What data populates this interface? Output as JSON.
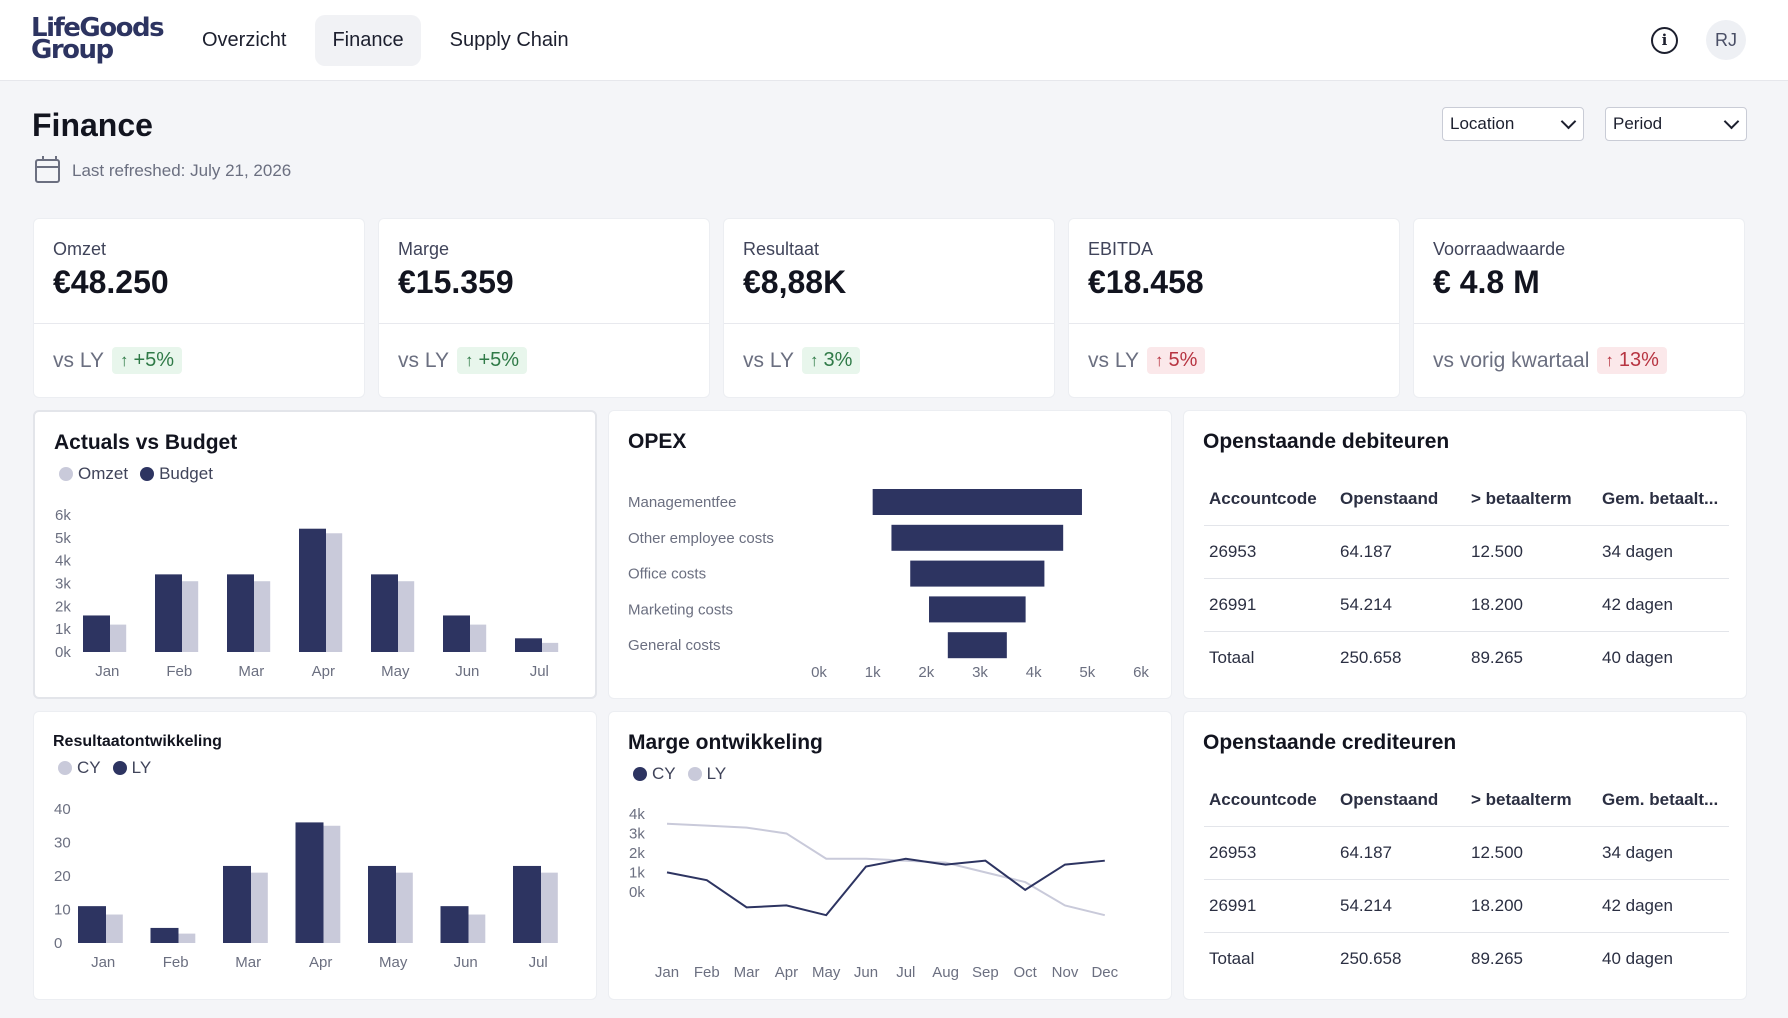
{
  "header": {
    "logo_line1": "LifeGoods",
    "logo_line2": "Group",
    "nav": [
      "Overzicht",
      "Finance",
      "Supply Chain"
    ],
    "active_nav": "Finance",
    "avatar_initials": "RJ"
  },
  "page": {
    "title": "Finance",
    "last_refreshed": "Last refreshed: July 21, 2026",
    "location_select": "Location",
    "period_select": "Period"
  },
  "kpis": [
    {
      "label": "Omzet",
      "value": "€48.250",
      "compare": "vs LY",
      "delta": "+5%",
      "trend": "up",
      "tone": "positive"
    },
    {
      "label": "Marge",
      "value": "€15.359",
      "compare": "vs LY",
      "delta": "+5%",
      "trend": "up",
      "tone": "positive"
    },
    {
      "label": "Resultaat",
      "value": "€8,88K",
      "compare": "vs LY",
      "delta": "3%",
      "trend": "up",
      "tone": "positive"
    },
    {
      "label": "EBITDA",
      "value": "€18.458",
      "compare": "vs LY",
      "delta": "5%",
      "trend": "up",
      "tone": "negative"
    },
    {
      "label": "Voorraadwaarde",
      "value": "€ 4.8 M",
      "compare": "vs vorig kwartaal",
      "delta": "13%",
      "trend": "up",
      "tone": "negative"
    }
  ],
  "colors": {
    "dark": "#2d3461",
    "light": "#c9cada",
    "green_bg": "#e8f6ec",
    "red_bg": "#fbe8ea"
  },
  "charts": {
    "actuals": {
      "title": "Actuals vs Budget",
      "legend": [
        "Omzet",
        "Budget"
      ]
    },
    "opex": {
      "title": "OPEX"
    },
    "resultaat": {
      "title": "Resultaatontwikkeling",
      "legend": [
        "CY",
        "LY"
      ]
    },
    "marge": {
      "title": "Marge ontwikkeling",
      "legend": [
        "CY",
        "LY"
      ]
    }
  },
  "chart_data": [
    {
      "type": "bar",
      "title": "Actuals vs Budget",
      "categories": [
        "Jan",
        "Feb",
        "Mar",
        "Apr",
        "May",
        "Jun",
        "Jul"
      ],
      "series": [
        {
          "name": "Budget",
          "values": [
            1.6,
            3.4,
            3.4,
            5.4,
            3.4,
            1.6,
            0.6
          ]
        },
        {
          "name": "Omzet",
          "values": [
            1.2,
            3.1,
            3.1,
            5.2,
            3.1,
            1.2,
            0.4
          ]
        }
      ],
      "yticks": [
        "0k",
        "1k",
        "2k",
        "3k",
        "4k",
        "5k",
        "6k"
      ],
      "ylim": [
        0,
        6
      ]
    },
    {
      "type": "bar",
      "orientation": "horizontal",
      "title": "OPEX",
      "categories": [
        "Managementfee",
        "Other employee costs",
        "Office costs",
        "Marketing costs",
        "General costs"
      ],
      "ranges": [
        [
          1.0,
          4.9
        ],
        [
          1.35,
          4.55
        ],
        [
          1.7,
          4.2
        ],
        [
          2.05,
          3.85
        ],
        [
          2.4,
          3.5
        ]
      ],
      "xticks": [
        "0k",
        "1k",
        "2k",
        "3k",
        "4k",
        "5k",
        "6k"
      ],
      "xlim": [
        0,
        6
      ]
    },
    {
      "type": "bar",
      "title": "Resultaatontwikkeling",
      "categories": [
        "Jan",
        "Feb",
        "Mar",
        "Apr",
        "May",
        "Jun",
        "Jul"
      ],
      "series": [
        {
          "name": "LY",
          "values": [
            11,
            4.5,
            23,
            36,
            23,
            11,
            23
          ]
        },
        {
          "name": "CY",
          "values": [
            8.5,
            2.8,
            21,
            35,
            21,
            8.5,
            21
          ]
        }
      ],
      "yticks": [
        "0",
        "10",
        "20",
        "30",
        "40"
      ],
      "ylim": [
        0,
        40
      ]
    },
    {
      "type": "line",
      "title": "Marge ontwikkeling",
      "categories": [
        "Jan",
        "Feb",
        "Mar",
        "Apr",
        "May",
        "Jun",
        "Jul",
        "Aug",
        "Sep",
        "Oct",
        "Nov",
        "Dec"
      ],
      "series": [
        {
          "name": "CY",
          "values": [
            1.0,
            0.6,
            -0.8,
            -0.7,
            -1.2,
            1.3,
            1.7,
            1.4,
            1.6,
            0.1,
            1.4,
            1.6
          ]
        },
        {
          "name": "LY",
          "values": [
            3.5,
            3.4,
            3.3,
            3.0,
            1.7,
            1.7,
            1.6,
            1.5,
            1.0,
            0.5,
            -0.7,
            -1.2
          ]
        }
      ],
      "yticks": [
        "0k",
        "1k",
        "2k",
        "3k",
        "4k"
      ],
      "ylim": [
        -1.5,
        4
      ]
    }
  ],
  "debiteuren": {
    "title": "Openstaande debiteuren",
    "columns": [
      "Accountcode",
      "Openstaand",
      "> betaalterm",
      "Gem. betaalt..."
    ],
    "rows": [
      [
        "26953",
        "64.187",
        "12.500",
        "34 dagen"
      ],
      [
        "26991",
        "54.214",
        "18.200",
        "42 dagen"
      ],
      [
        "Totaal",
        "250.658",
        "89.265",
        "40 dagen"
      ]
    ]
  },
  "crediteuren": {
    "title": "Openstaande crediteuren",
    "columns": [
      "Accountcode",
      "Openstaand",
      "> betaalterm",
      "Gem. betaalt..."
    ],
    "rows": [
      [
        "26953",
        "64.187",
        "12.500",
        "34 dagen"
      ],
      [
        "26991",
        "54.214",
        "18.200",
        "42 dagen"
      ],
      [
        "Totaal",
        "250.658",
        "89.265",
        "40 dagen"
      ]
    ]
  }
}
